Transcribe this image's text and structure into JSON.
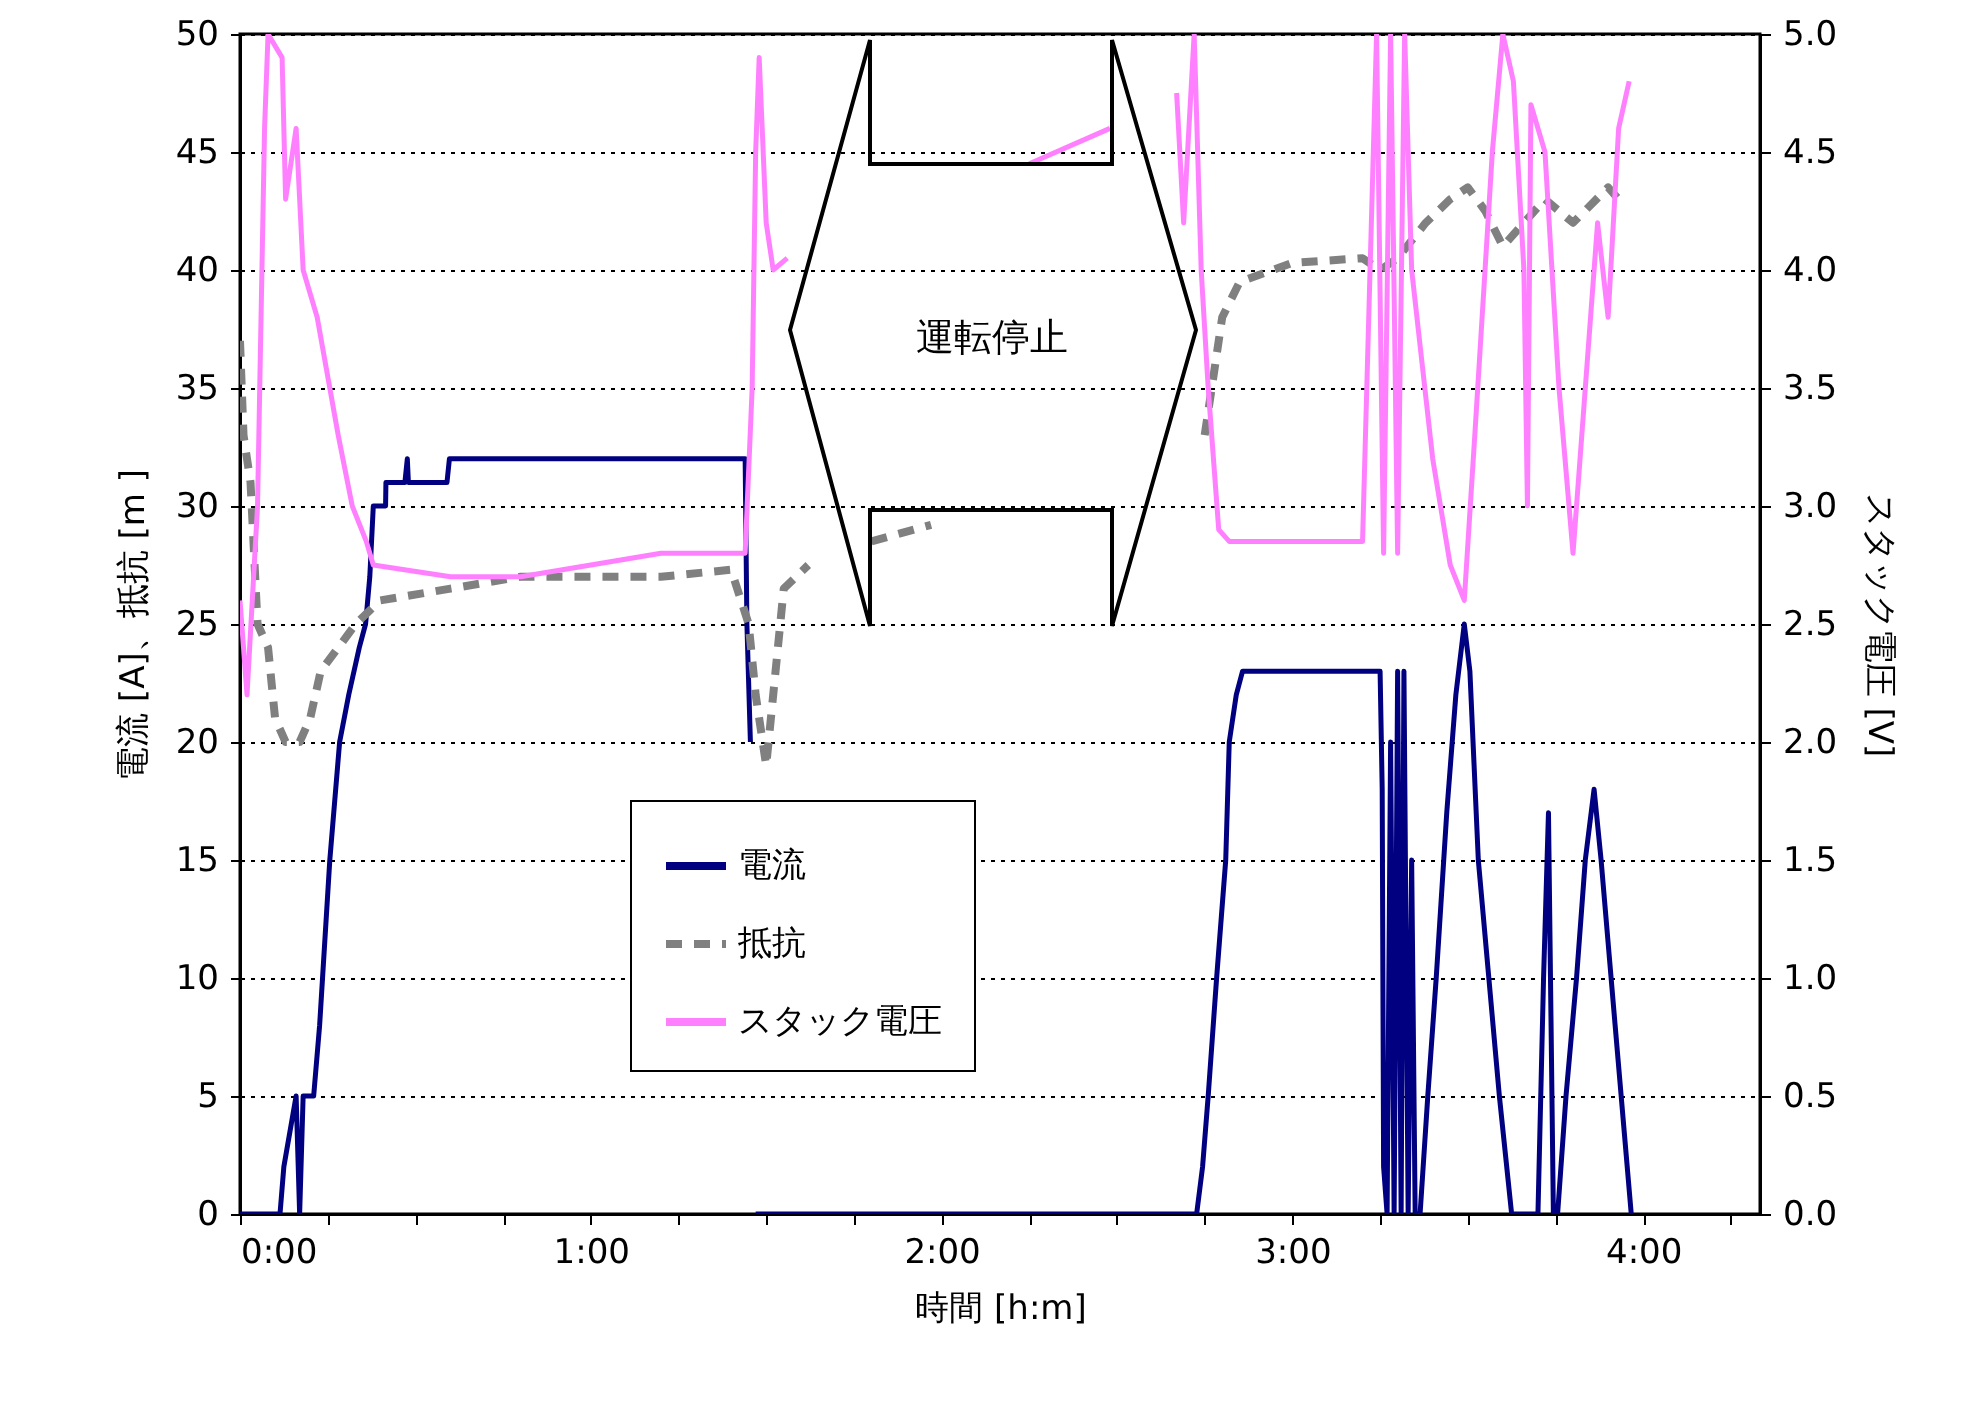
{
  "chart_data": {
    "type": "line",
    "xlabel": "時間 [h:m]",
    "ylabel": "電流 [A]、抵抗 [m ]",
    "y2label": "スタック電圧 [V]",
    "annotations": [
      "運転停止"
    ],
    "xlim": [
      0,
      4.333
    ],
    "xticks": [
      {
        "value": 0,
        "label": "0:00"
      },
      {
        "value": 0.25,
        "label": null
      },
      {
        "value": 0.5,
        "label": null
      },
      {
        "value": 0.75,
        "label": null
      },
      {
        "value": 1,
        "label": "1:00"
      },
      {
        "value": 1.25,
        "label": null
      },
      {
        "value": 1.5,
        "label": null
      },
      {
        "value": 1.75,
        "label": null
      },
      {
        "value": 2,
        "label": "2:00"
      },
      {
        "value": 2.25,
        "label": null
      },
      {
        "value": 2.5,
        "label": null
      },
      {
        "value": 2.75,
        "label": null
      },
      {
        "value": 3,
        "label": "3:00"
      },
      {
        "value": 3.25,
        "label": null
      },
      {
        "value": 3.5,
        "label": null
      },
      {
        "value": 3.75,
        "label": null
      },
      {
        "value": 4,
        "label": "4:00"
      },
      {
        "value": 4.25,
        "label": null
      }
    ],
    "ylim": [
      0,
      50
    ],
    "yticks": [
      0,
      5,
      10,
      15,
      20,
      25,
      30,
      35,
      40,
      45,
      50
    ],
    "y2lim": [
      0,
      5
    ],
    "y2ticks": [
      {
        "value": 0,
        "label": "0.0"
      },
      0.5,
      {
        "value": 1,
        "label": "1.0"
      },
      1.5,
      {
        "value": 2,
        "label": "2.0"
      },
      2.5,
      {
        "value": 3,
        "label": "3.0"
      },
      3.5,
      {
        "value": 4,
        "label": "4.0"
      },
      4.5,
      {
        "value": 5,
        "label": "5.0"
      }
    ],
    "grid": "y",
    "legend": "bottom",
    "series": [
      {
        "name": "電流",
        "color": "#000080",
        "x": [
          0,
          0.114,
          0.125,
          0.16,
          0.17,
          0.18,
          0.21,
          0.227,
          0.256,
          0.284,
          0.31,
          0.34,
          0.358,
          0.37,
          0.38,
          0.415,
          0.416,
          0.47,
          0.477,
          0.48,
          0.59,
          0.597,
          1.44,
          1.445,
          1.455,
          1.466,
          1.47,
          2.727,
          2.744,
          2.76,
          2.784,
          2.81,
          2.82,
          2.84,
          2.858,
          3.25,
          3.256,
          3.26,
          3.27,
          3.28,
          3.29,
          3.3,
          3.31,
          3.318,
          3.33,
          3.34,
          3.35,
          3.364,
          3.386,
          3.41,
          3.44,
          3.466,
          3.49,
          3.506,
          3.53,
          3.56,
          3.59,
          3.625,
          3.7,
          3.716,
          3.73,
          3.744,
          3.756,
          3.78,
          3.81,
          3.835,
          3.86,
          3.88,
          3.92,
          3.966
        ],
        "values": [
          0,
          0,
          2,
          5,
          0,
          5,
          5,
          8,
          15,
          20,
          22,
          24,
          25,
          27,
          30,
          30,
          31,
          31,
          32,
          31,
          31,
          32,
          32,
          25,
          20,
          null,
          0,
          0,
          2,
          5,
          10,
          15,
          20,
          22,
          23,
          23,
          18,
          2,
          0,
          20,
          0,
          23,
          0,
          23,
          0,
          15,
          0,
          0,
          5,
          10,
          17,
          22,
          25,
          23,
          15,
          10,
          5,
          0,
          0,
          10,
          17,
          0,
          0,
          5,
          10,
          15,
          18,
          15,
          8,
          0
        ]
      },
      {
        "name": "抵抗",
        "color": "#808080",
        "line_style": "dashed",
        "x": [
          0,
          0.01,
          0.03,
          0.05,
          0.08,
          0.1,
          0.13,
          0.17,
          0.2,
          0.23,
          0.28,
          0.33,
          0.4,
          0.6,
          0.8,
          1.0,
          1.2,
          1.4,
          1.45,
          1.47,
          1.5,
          1.55,
          1.62,
          1.63,
          1.8,
          1.97,
          1.98,
          2.75,
          2.78,
          2.8,
          2.85,
          3.0,
          3.2,
          3.25,
          3.3,
          3.38,
          3.45,
          3.5,
          3.55,
          3.6,
          3.66,
          3.72,
          3.8,
          3.9,
          3.93
        ],
        "values": [
          37,
          33,
          31,
          25,
          24,
          21,
          20,
          20,
          21,
          23,
          24,
          25,
          26,
          26.5,
          27,
          27,
          27,
          27.3,
          25,
          22,
          19,
          26.5,
          27.5,
          null,
          28.5,
          29.2,
          null,
          33,
          36,
          38,
          39.5,
          40.3,
          40.5,
          40,
          40.5,
          42,
          43,
          43.5,
          42.5,
          41,
          42,
          43,
          42,
          43.5,
          43
        ]
      },
      {
        "name": "スタック電圧",
        "color": "#ff80ff",
        "axis": "y2",
        "x": [
          0,
          0.02,
          0.05,
          0.07,
          0.08,
          0.12,
          0.13,
          0.16,
          0.18,
          0.22,
          0.28,
          0.32,
          0.36,
          0.38,
          0.6,
          0.8,
          1.0,
          1.2,
          1.44,
          1.46,
          1.47,
          1.48,
          1.5,
          1.52,
          1.56,
          1.57,
          2.25,
          2.48,
          2.49,
          2.67,
          2.69,
          2.72,
          2.74,
          2.76,
          2.79,
          2.82,
          3.2,
          3.24,
          3.26,
          3.28,
          3.3,
          3.32,
          3.34,
          3.4,
          3.45,
          3.49,
          3.52,
          3.57,
          3.6,
          3.63,
          3.66,
          3.67,
          3.68,
          3.72,
          3.76,
          3.8,
          3.83,
          3.87,
          3.9,
          3.93,
          3.96
        ],
        "values": [
          2.6,
          2.2,
          3.0,
          4.6,
          5.0,
          4.9,
          4.3,
          4.6,
          4.0,
          3.8,
          3.3,
          3.0,
          2.85,
          2.75,
          2.7,
          2.7,
          2.75,
          2.8,
          2.8,
          3.5,
          4.5,
          4.9,
          4.2,
          4.0,
          4.05,
          null,
          4.45,
          4.6,
          null,
          4.75,
          4.2,
          5.0,
          4.0,
          3.5,
          2.9,
          2.85,
          2.85,
          5.0,
          2.8,
          5.0,
          2.8,
          5.0,
          4.0,
          3.2,
          2.75,
          2.6,
          3.3,
          4.5,
          5.0,
          4.8,
          4.0,
          3.0,
          4.7,
          4.5,
          3.5,
          2.8,
          3.4,
          4.2,
          3.8,
          4.6,
          4.8
        ]
      }
    ]
  }
}
